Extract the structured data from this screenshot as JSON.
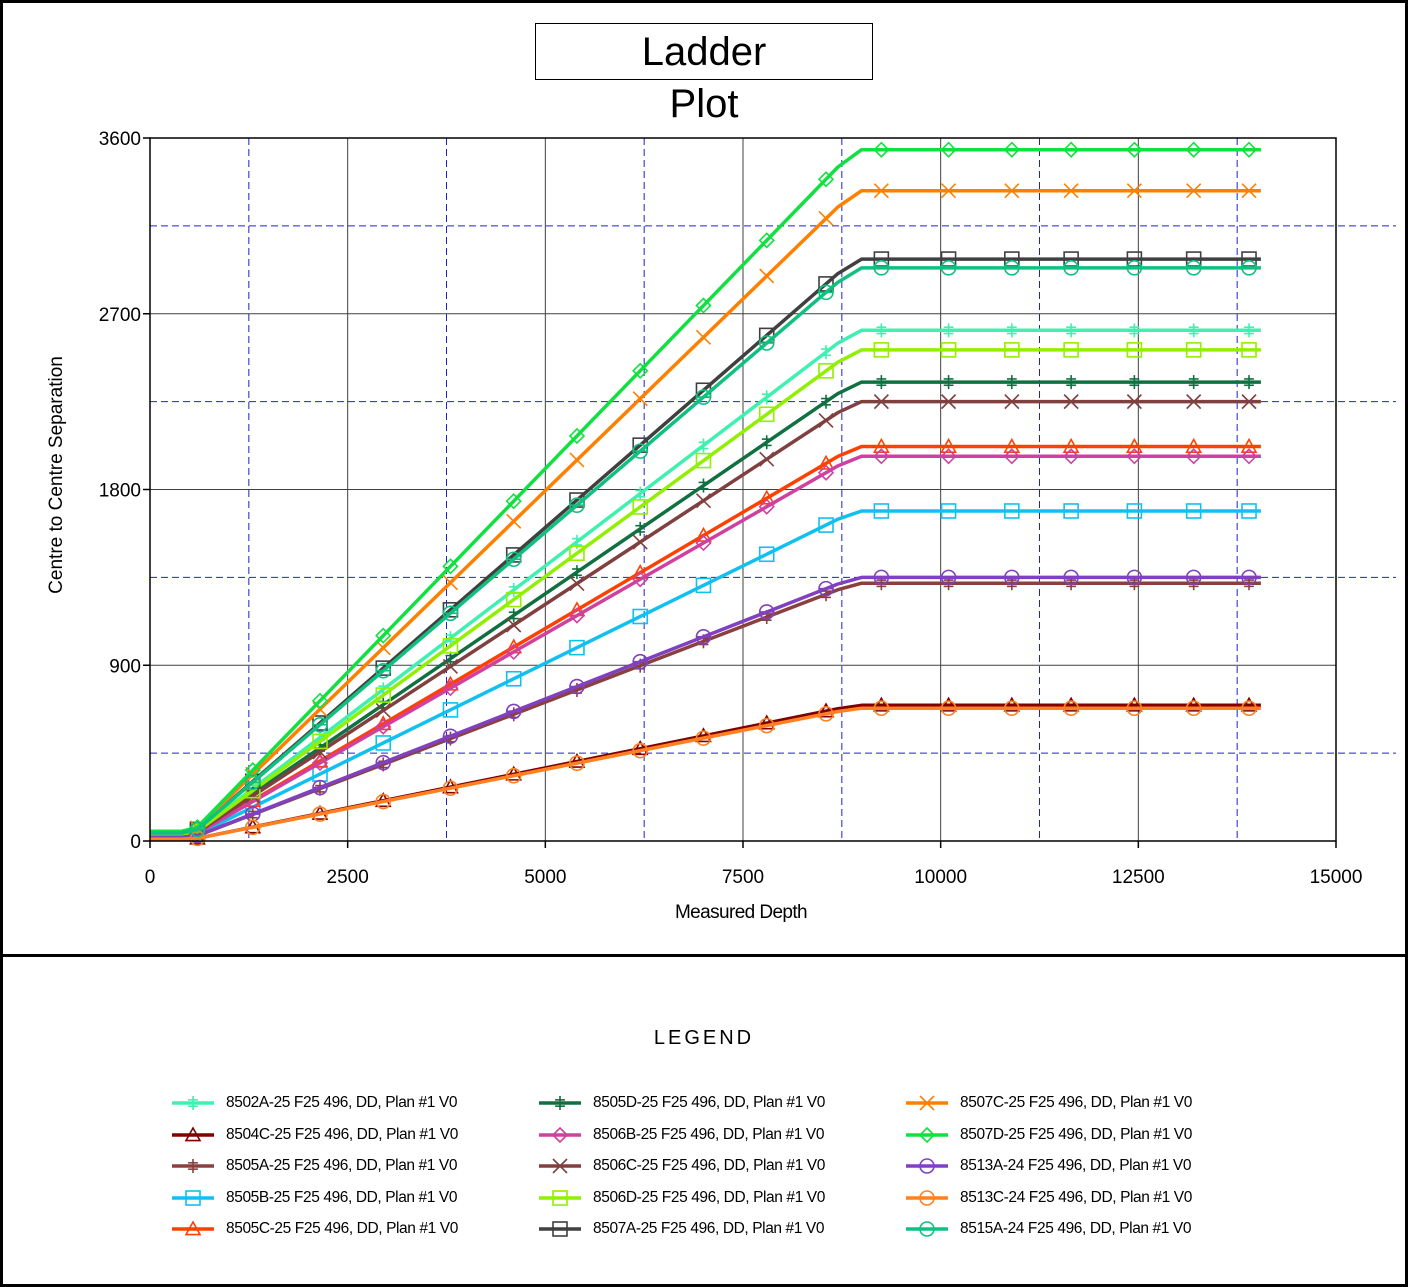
{
  "chart_data": {
    "type": "line",
    "title": "Ladder Plot",
    "title_lines": [
      "Ladder",
      "Plot"
    ],
    "xlabel": "Measured Depth",
    "ylabel": "Centre to Centre Separation",
    "xlim": [
      0,
      15000
    ],
    "ylim": [
      0,
      3600
    ],
    "xticks": [
      0,
      2500,
      5000,
      7500,
      10000,
      12500,
      15000
    ],
    "yticks": [
      0,
      900,
      1800,
      2700,
      3600
    ],
    "grid": true,
    "legend_title": "LEGEND",
    "legend_placement": "bottom",
    "series": [
      {
        "name": "8502A-25 F25 496, DD, Plan #1 V0",
        "color": "#40f0b0",
        "marker": "plus",
        "final": 2615
      },
      {
        "name": "8504C-25 F25 496, DD, Plan #1 V0",
        "color": "#800000",
        "marker": "triangle",
        "final": 695
      },
      {
        "name": "8505A-25 F25 496, DD, Plan #1 V0",
        "color": "#8b4040",
        "marker": "plus",
        "final": 1320
      },
      {
        "name": "8505B-25 F25 496, DD, Plan #1 V0",
        "color": "#10c0f0",
        "marker": "square",
        "final": 1690
      },
      {
        "name": "8505C-25 F25 496, DD, Plan #1 V0",
        "color": "#ff4000",
        "marker": "triangle",
        "final": 2020
      },
      {
        "name": "8505D-25 F25 496, DD, Plan #1 V0",
        "color": "#107040",
        "marker": "plus",
        "final": 2350
      },
      {
        "name": "8506B-25 F25 496, DD, Plan #1 V0",
        "color": "#d040a0",
        "marker": "diamond",
        "final": 1970
      },
      {
        "name": "8506C-25 F25 496, DD, Plan #1 V0",
        "color": "#804040",
        "marker": "x",
        "final": 2250
      },
      {
        "name": "8506D-25 F25 496, DD, Plan #1 V0",
        "color": "#90f000",
        "marker": "square",
        "final": 2515
      },
      {
        "name": "8507A-25 F25 496, DD, Plan #1 V0",
        "color": "#404040",
        "marker": "square",
        "final": 2980
      },
      {
        "name": "8507C-25 F25 496, DD, Plan #1 V0",
        "color": "#ff8000",
        "marker": "x",
        "final": 3330
      },
      {
        "name": "8507D-25 F25 496, DD, Plan #1 V0",
        "color": "#10e040",
        "marker": "diamond",
        "final": 3540
      },
      {
        "name": "8513A-24 F25 496, DD, Plan #1 V0",
        "color": "#8040c0",
        "marker": "circle",
        "final": 1350
      },
      {
        "name": "8513C-24 F25 496, DD, Plan #1 V0",
        "color": "#ff8020",
        "marker": "circle",
        "final": 680
      },
      {
        "name": "8515A-24 F25 496, DD, Plan #1 V0",
        "color": "#10c080",
        "marker": "circle",
        "final": 2935
      }
    ],
    "path_shape": {
      "x": [
        0,
        400,
        600,
        8700,
        9000,
        14050
      ],
      "fraction_of_final": [
        0.014,
        0.014,
        0.02,
        0.975,
        1.0,
        1.0
      ],
      "marker_x": [
        600,
        1300,
        2150,
        2950,
        3800,
        4600,
        5400,
        6200,
        7000,
        7800,
        8550,
        9250,
        10100,
        10900,
        11650,
        12450,
        13200,
        13900
      ]
    }
  }
}
